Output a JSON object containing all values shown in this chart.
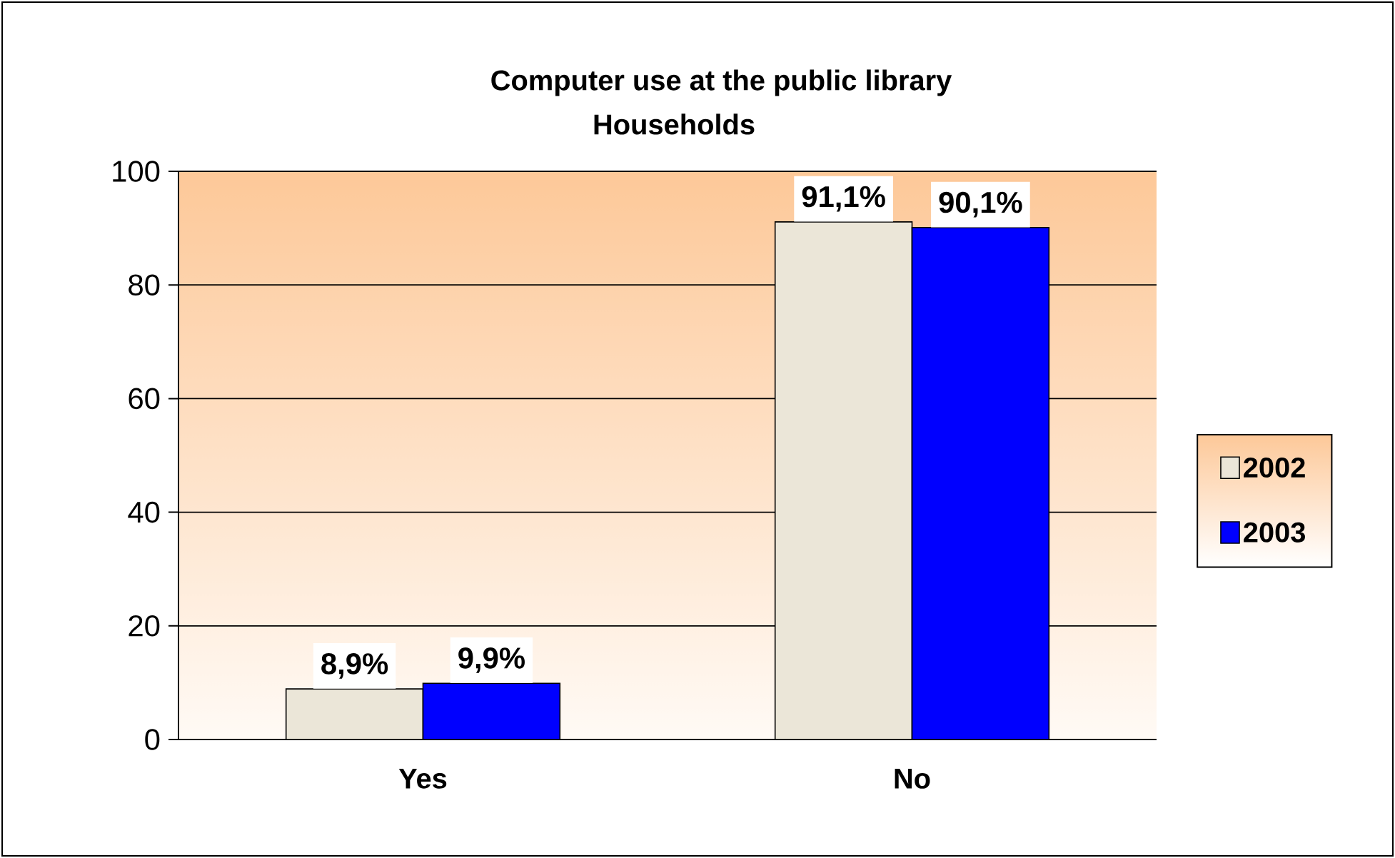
{
  "chart_data": {
    "type": "bar",
    "title": "Computer use at the public library",
    "subtitle": "Households",
    "categories": [
      "Yes",
      "No"
    ],
    "series": [
      {
        "name": "2002",
        "color": "#ebe6d8",
        "values": [
          8.9,
          91.1
        ],
        "value_labels": [
          "8,9%",
          "91,1%"
        ]
      },
      {
        "name": "2003",
        "color": "#0000ff",
        "values": [
          9.9,
          90.1
        ],
        "value_labels": [
          "9,9%",
          "90,1%"
        ]
      }
    ],
    "ylim": [
      0,
      100
    ],
    "yticks": [
      0,
      20,
      40,
      60,
      80,
      100
    ],
    "grid": "y",
    "legend": "right"
  }
}
